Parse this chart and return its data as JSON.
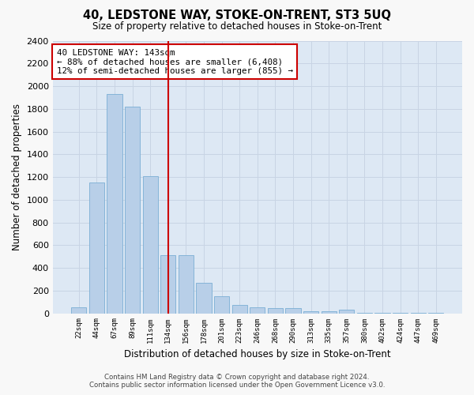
{
  "title": "40, LEDSTONE WAY, STOKE-ON-TRENT, ST3 5UQ",
  "subtitle": "Size of property relative to detached houses in Stoke-on-Trent",
  "xlabel": "Distribution of detached houses by size in Stoke-on-Trent",
  "ylabel": "Number of detached properties",
  "footer_line1": "Contains HM Land Registry data © Crown copyright and database right 2024.",
  "footer_line2": "Contains public sector information licensed under the Open Government Licence v3.0.",
  "annotation_title": "40 LEDSTONE WAY: 143sqm",
  "annotation_line1": "← 88% of detached houses are smaller (6,408)",
  "annotation_line2": "12% of semi-detached houses are larger (855) →",
  "categories": [
    "22sqm",
    "44sqm",
    "67sqm",
    "89sqm",
    "111sqm",
    "134sqm",
    "156sqm",
    "178sqm",
    "201sqm",
    "223sqm",
    "246sqm",
    "268sqm",
    "290sqm",
    "313sqm",
    "335sqm",
    "357sqm",
    "380sqm",
    "402sqm",
    "424sqm",
    "447sqm",
    "469sqm"
  ],
  "values": [
    55,
    1150,
    1930,
    1820,
    1210,
    510,
    510,
    265,
    150,
    70,
    50,
    45,
    45,
    20,
    15,
    30,
    5,
    5,
    5,
    5,
    5
  ],
  "bar_color": "#b8cfe8",
  "bar_edge_color": "#7aaed4",
  "vline_color": "#cc0000",
  "vline_position": 5.0,
  "ylim": [
    0,
    2400
  ],
  "yticks": [
    0,
    200,
    400,
    600,
    800,
    1000,
    1200,
    1400,
    1600,
    1800,
    2000,
    2200,
    2400
  ],
  "grid_color": "#c8d4e4",
  "background_color": "#dde8f4",
  "fig_background": "#f8f8f8",
  "annotation_box_color": "#ffffff",
  "annotation_box_edge": "#cc0000"
}
